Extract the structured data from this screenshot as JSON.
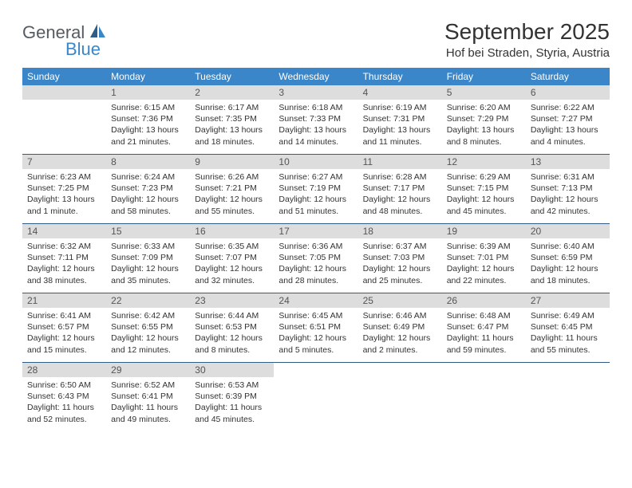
{
  "brand": {
    "general": "General",
    "blue": "Blue"
  },
  "title": "September 2025",
  "location": "Hof bei Straden, Styria, Austria",
  "colors": {
    "header_bg": "#3a86c8",
    "header_text": "#ffffff",
    "daynum_bg": "#dddddd",
    "rule": "#2f5d87",
    "body_text": "#333333"
  },
  "day_names": [
    "Sunday",
    "Monday",
    "Tuesday",
    "Wednesday",
    "Thursday",
    "Friday",
    "Saturday"
  ],
  "weeks": [
    [
      {
        "n": "",
        "sr": "",
        "ss": "",
        "dl": ""
      },
      {
        "n": "1",
        "sr": "Sunrise: 6:15 AM",
        "ss": "Sunset: 7:36 PM",
        "dl": "Daylight: 13 hours and 21 minutes."
      },
      {
        "n": "2",
        "sr": "Sunrise: 6:17 AM",
        "ss": "Sunset: 7:35 PM",
        "dl": "Daylight: 13 hours and 18 minutes."
      },
      {
        "n": "3",
        "sr": "Sunrise: 6:18 AM",
        "ss": "Sunset: 7:33 PM",
        "dl": "Daylight: 13 hours and 14 minutes."
      },
      {
        "n": "4",
        "sr": "Sunrise: 6:19 AM",
        "ss": "Sunset: 7:31 PM",
        "dl": "Daylight: 13 hours and 11 minutes."
      },
      {
        "n": "5",
        "sr": "Sunrise: 6:20 AM",
        "ss": "Sunset: 7:29 PM",
        "dl": "Daylight: 13 hours and 8 minutes."
      },
      {
        "n": "6",
        "sr": "Sunrise: 6:22 AM",
        "ss": "Sunset: 7:27 PM",
        "dl": "Daylight: 13 hours and 4 minutes."
      }
    ],
    [
      {
        "n": "7",
        "sr": "Sunrise: 6:23 AM",
        "ss": "Sunset: 7:25 PM",
        "dl": "Daylight: 13 hours and 1 minute."
      },
      {
        "n": "8",
        "sr": "Sunrise: 6:24 AM",
        "ss": "Sunset: 7:23 PM",
        "dl": "Daylight: 12 hours and 58 minutes."
      },
      {
        "n": "9",
        "sr": "Sunrise: 6:26 AM",
        "ss": "Sunset: 7:21 PM",
        "dl": "Daylight: 12 hours and 55 minutes."
      },
      {
        "n": "10",
        "sr": "Sunrise: 6:27 AM",
        "ss": "Sunset: 7:19 PM",
        "dl": "Daylight: 12 hours and 51 minutes."
      },
      {
        "n": "11",
        "sr": "Sunrise: 6:28 AM",
        "ss": "Sunset: 7:17 PM",
        "dl": "Daylight: 12 hours and 48 minutes."
      },
      {
        "n": "12",
        "sr": "Sunrise: 6:29 AM",
        "ss": "Sunset: 7:15 PM",
        "dl": "Daylight: 12 hours and 45 minutes."
      },
      {
        "n": "13",
        "sr": "Sunrise: 6:31 AM",
        "ss": "Sunset: 7:13 PM",
        "dl": "Daylight: 12 hours and 42 minutes."
      }
    ],
    [
      {
        "n": "14",
        "sr": "Sunrise: 6:32 AM",
        "ss": "Sunset: 7:11 PM",
        "dl": "Daylight: 12 hours and 38 minutes."
      },
      {
        "n": "15",
        "sr": "Sunrise: 6:33 AM",
        "ss": "Sunset: 7:09 PM",
        "dl": "Daylight: 12 hours and 35 minutes."
      },
      {
        "n": "16",
        "sr": "Sunrise: 6:35 AM",
        "ss": "Sunset: 7:07 PM",
        "dl": "Daylight: 12 hours and 32 minutes."
      },
      {
        "n": "17",
        "sr": "Sunrise: 6:36 AM",
        "ss": "Sunset: 7:05 PM",
        "dl": "Daylight: 12 hours and 28 minutes."
      },
      {
        "n": "18",
        "sr": "Sunrise: 6:37 AM",
        "ss": "Sunset: 7:03 PM",
        "dl": "Daylight: 12 hours and 25 minutes."
      },
      {
        "n": "19",
        "sr": "Sunrise: 6:39 AM",
        "ss": "Sunset: 7:01 PM",
        "dl": "Daylight: 12 hours and 22 minutes."
      },
      {
        "n": "20",
        "sr": "Sunrise: 6:40 AM",
        "ss": "Sunset: 6:59 PM",
        "dl": "Daylight: 12 hours and 18 minutes."
      }
    ],
    [
      {
        "n": "21",
        "sr": "Sunrise: 6:41 AM",
        "ss": "Sunset: 6:57 PM",
        "dl": "Daylight: 12 hours and 15 minutes."
      },
      {
        "n": "22",
        "sr": "Sunrise: 6:42 AM",
        "ss": "Sunset: 6:55 PM",
        "dl": "Daylight: 12 hours and 12 minutes."
      },
      {
        "n": "23",
        "sr": "Sunrise: 6:44 AM",
        "ss": "Sunset: 6:53 PM",
        "dl": "Daylight: 12 hours and 8 minutes."
      },
      {
        "n": "24",
        "sr": "Sunrise: 6:45 AM",
        "ss": "Sunset: 6:51 PM",
        "dl": "Daylight: 12 hours and 5 minutes."
      },
      {
        "n": "25",
        "sr": "Sunrise: 6:46 AM",
        "ss": "Sunset: 6:49 PM",
        "dl": "Daylight: 12 hours and 2 minutes."
      },
      {
        "n": "26",
        "sr": "Sunrise: 6:48 AM",
        "ss": "Sunset: 6:47 PM",
        "dl": "Daylight: 11 hours and 59 minutes."
      },
      {
        "n": "27",
        "sr": "Sunrise: 6:49 AM",
        "ss": "Sunset: 6:45 PM",
        "dl": "Daylight: 11 hours and 55 minutes."
      }
    ],
    [
      {
        "n": "28",
        "sr": "Sunrise: 6:50 AM",
        "ss": "Sunset: 6:43 PM",
        "dl": "Daylight: 11 hours and 52 minutes."
      },
      {
        "n": "29",
        "sr": "Sunrise: 6:52 AM",
        "ss": "Sunset: 6:41 PM",
        "dl": "Daylight: 11 hours and 49 minutes."
      },
      {
        "n": "30",
        "sr": "Sunrise: 6:53 AM",
        "ss": "Sunset: 6:39 PM",
        "dl": "Daylight: 11 hours and 45 minutes."
      },
      {
        "n": "",
        "sr": "",
        "ss": "",
        "dl": ""
      },
      {
        "n": "",
        "sr": "",
        "ss": "",
        "dl": ""
      },
      {
        "n": "",
        "sr": "",
        "ss": "",
        "dl": ""
      },
      {
        "n": "",
        "sr": "",
        "ss": "",
        "dl": ""
      }
    ]
  ]
}
